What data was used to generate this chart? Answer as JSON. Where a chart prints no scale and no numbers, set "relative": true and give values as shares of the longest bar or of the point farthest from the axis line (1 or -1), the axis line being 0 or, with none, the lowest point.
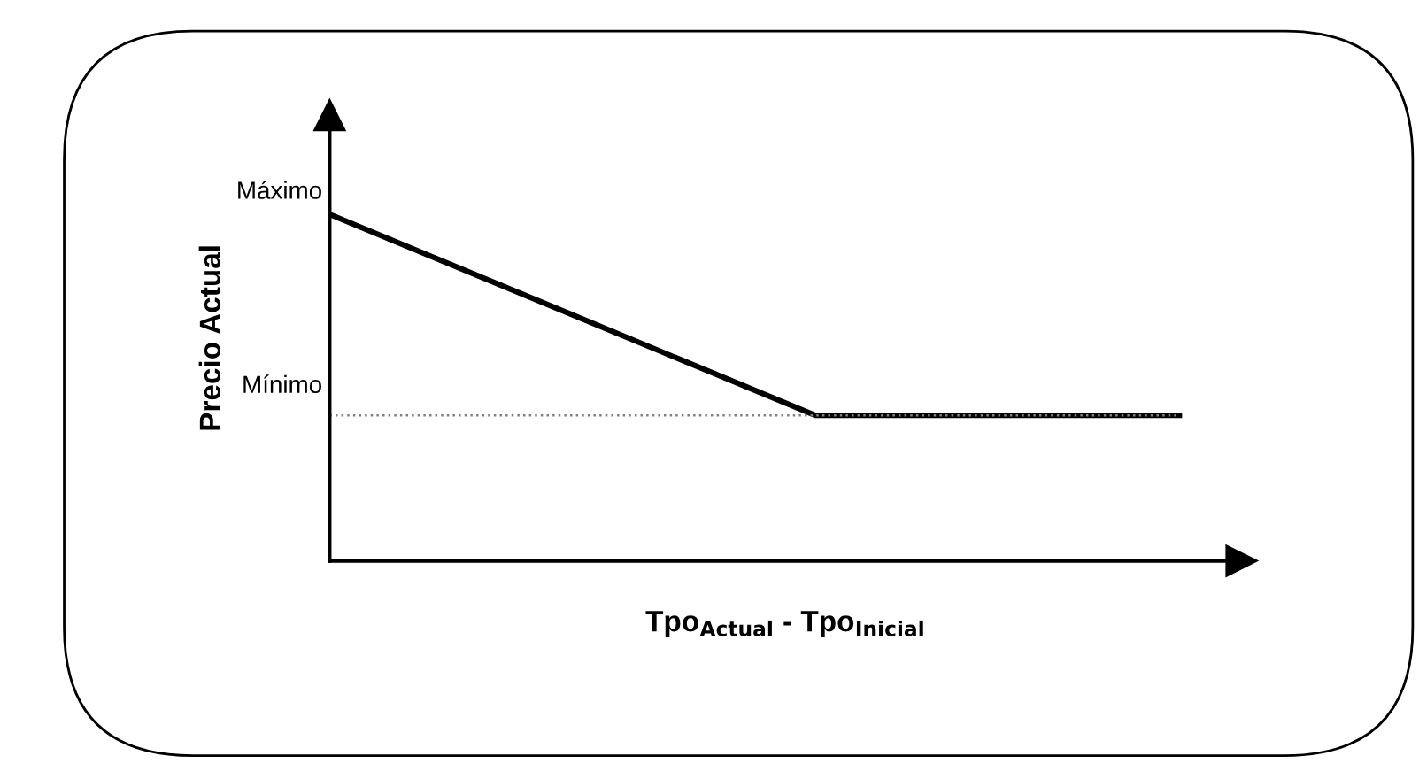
{
  "chart_data": {
    "type": "line",
    "relative": true,
    "xlabel": "Tpo$_{Actual}$ - Tpo$_{Inicial}$",
    "ylabel": "Precio Actual",
    "categories": [
      null,
      null,
      null,
      null,
      null,
      null,
      null,
      null
    ],
    "series": [
      {
        "color": "#000000",
        "values": [
          1,
          0.855,
          0.71,
          0.565,
          0.42,
          0.42,
          0.42,
          0.42
        ]
      }
    ],
    "ref_lines": [
      {
        "axis": "y",
        "value": 0.42,
        "label": "Mínimo",
        "color": "#808080",
        "line_style": "dotted"
      }
    ],
    "annotations": [
      "Máximo"
    ],
    "legend": false,
    "marker": "none",
    "line_style": "solid"
  }
}
